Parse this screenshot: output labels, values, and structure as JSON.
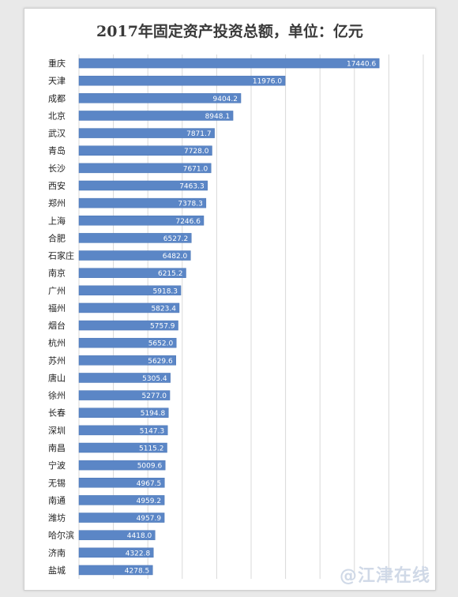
{
  "colors": {
    "bar": "#5b86c6",
    "bar_edge": "#4a75b5",
    "grid": "#d9d9d9",
    "background": "#ffffff"
  },
  "chart_data": {
    "type": "bar",
    "orientation": "horizontal",
    "title": "2017年固定资产投资总额，单位：亿元",
    "xlabel": "",
    "ylabel": "",
    "xlim": [
      0,
      20000
    ],
    "grid": true,
    "legend": "none",
    "categories": [
      "重庆",
      "天津",
      "成都",
      "北京",
      "武汉",
      "青岛",
      "长沙",
      "西安",
      "郑州",
      "上海",
      "合肥",
      "石家庄",
      "南京",
      "广州",
      "福州",
      "烟台",
      "杭州",
      "苏州",
      "唐山",
      "徐州",
      "长春",
      "深圳",
      "南昌",
      "宁波",
      "无锡",
      "南通",
      "潍坊",
      "哈尔滨",
      "济南",
      "盐城"
    ],
    "values": [
      17440.6,
      11976.0,
      9404.2,
      8948.1,
      7871.7,
      7728.0,
      7671.0,
      7463.3,
      7378.3,
      7246.6,
      6527.2,
      6482.0,
      6215.2,
      5918.3,
      5823.4,
      5757.9,
      5652.0,
      5629.6,
      5305.4,
      5277.0,
      5194.8,
      5147.3,
      5115.2,
      5009.6,
      4967.5,
      4959.2,
      4957.9,
      4418.0,
      4322.8,
      4278.5
    ],
    "value_labels": [
      "17440.6",
      "11976.0",
      "9404.2",
      "8948.1",
      "7871.7",
      "7728.0",
      "7671.0",
      "7463.3",
      "7378.3",
      "7246.6",
      "6527.2",
      "6482.0",
      "6215.2",
      "5918.3",
      "5823.4",
      "5757.9",
      "5652.0",
      "5629.6",
      "5305.4",
      "5277.0",
      "5194.8",
      "5147.3",
      "5115.2",
      "5009.6",
      "4967.5",
      "4959.2",
      "4957.9",
      "4418.0",
      "4322.8",
      "4278.5"
    ]
  },
  "watermark": {
    "text": "@江津在线"
  }
}
